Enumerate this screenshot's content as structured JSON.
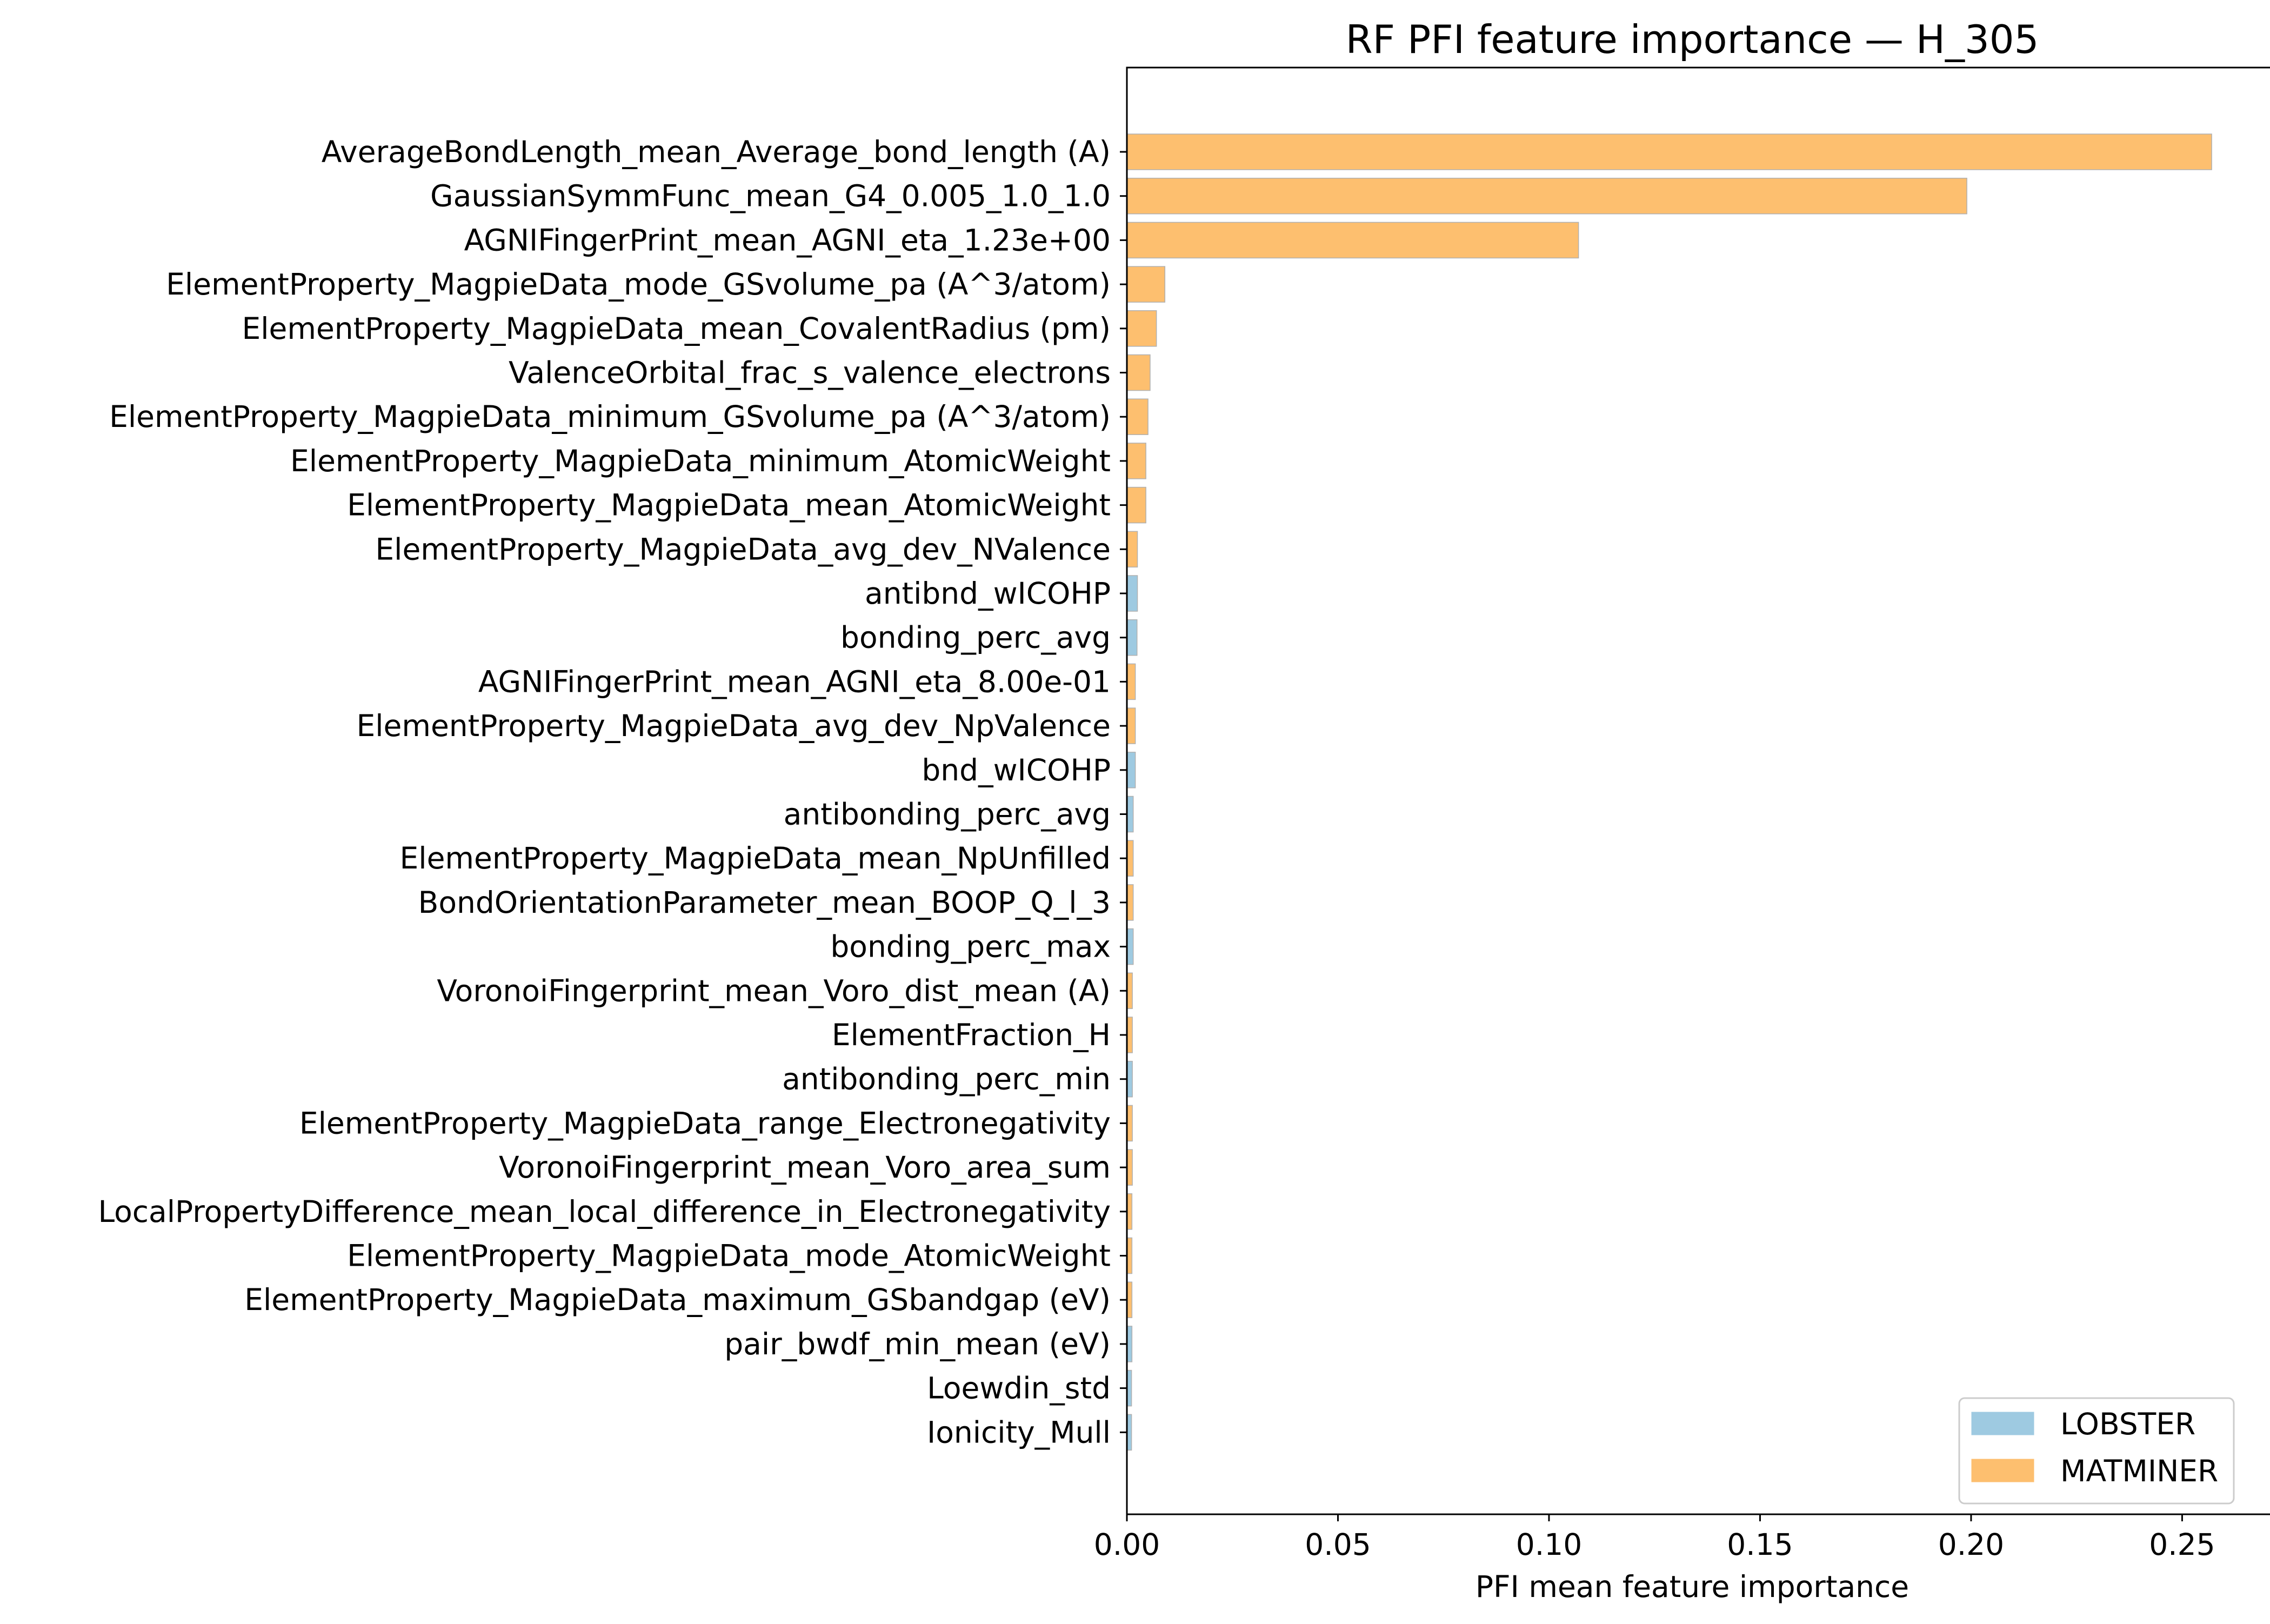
{
  "chart_data": {
    "type": "bar",
    "orientation": "horizontal",
    "title": "RF PFI feature importance — H_305",
    "xlabel": "PFI mean feature importance",
    "ylabel": "",
    "xlim": [
      0,
      0.268
    ],
    "xticks": [
      0.0,
      0.05,
      0.1,
      0.15,
      0.2,
      0.25
    ],
    "xtick_labels": [
      "0.00",
      "0.05",
      "0.10",
      "0.15",
      "0.20",
      "0.25"
    ],
    "grid": false,
    "legend_position": "bottom-right",
    "groups": [
      {
        "name": "LOBSTER",
        "color": "#9ecae1"
      },
      {
        "name": "MATMINER",
        "color": "#fdbf6f"
      }
    ],
    "categories": [
      "AverageBondLength_mean_Average_bond_length (A)",
      "GaussianSymmFunc_mean_G4_0.005_1.0_1.0",
      "AGNIFingerPrint_mean_AGNI_eta_1.23e+00",
      "ElementProperty_MagpieData_mode_GSvolume_pa (A^3/atom)",
      "ElementProperty_MagpieData_mean_CovalentRadius (pm)",
      "ValenceOrbital_frac_s_valence_electrons",
      "ElementProperty_MagpieData_minimum_GSvolume_pa (A^3/atom)",
      "ElementProperty_MagpieData_minimum_AtomicWeight",
      "ElementProperty_MagpieData_mean_AtomicWeight",
      "ElementProperty_MagpieData_avg_dev_NValence",
      "antibnd_wICOHP",
      "bonding_perc_avg",
      "AGNIFingerPrint_mean_AGNI_eta_8.00e-01",
      "ElementProperty_MagpieData_avg_dev_NpValence",
      "bnd_wICOHP",
      "antibonding_perc_avg",
      "ElementProperty_MagpieData_mean_NpUnfilled",
      "BondOrientationParameter_mean_BOOP_Q_l_3",
      "bonding_perc_max",
      "VoronoiFingerprint_mean_Voro_dist_mean (A)",
      "ElementFraction_H",
      "antibonding_perc_min",
      "ElementProperty_MagpieData_range_Electronegativity",
      "VoronoiFingerprint_mean_Voro_area_sum",
      "LocalPropertyDifference_mean_local_difference_in_Electronegativity",
      "ElementProperty_MagpieData_mode_AtomicWeight",
      "ElementProperty_MagpieData_maximum_GSbandgap (eV)",
      "pair_bwdf_min_mean (eV)",
      "Loewdin_std",
      "Ionicity_Mull"
    ],
    "values": [
      0.257,
      0.199,
      0.107,
      0.009,
      0.007,
      0.0055,
      0.005,
      0.0045,
      0.0045,
      0.0025,
      0.0025,
      0.0024,
      0.002,
      0.002,
      0.002,
      0.0015,
      0.0015,
      0.0015,
      0.0015,
      0.0013,
      0.0013,
      0.0013,
      0.0013,
      0.0013,
      0.0012,
      0.0012,
      0.0012,
      0.0012,
      0.0011,
      0.0011
    ],
    "group_of_each": [
      "MATMINER",
      "MATMINER",
      "MATMINER",
      "MATMINER",
      "MATMINER",
      "MATMINER",
      "MATMINER",
      "MATMINER",
      "MATMINER",
      "MATMINER",
      "LOBSTER",
      "LOBSTER",
      "MATMINER",
      "MATMINER",
      "LOBSTER",
      "LOBSTER",
      "MATMINER",
      "MATMINER",
      "LOBSTER",
      "MATMINER",
      "MATMINER",
      "LOBSTER",
      "MATMINER",
      "MATMINER",
      "MATMINER",
      "MATMINER",
      "MATMINER",
      "LOBSTER",
      "LOBSTER",
      "LOBSTER"
    ]
  }
}
